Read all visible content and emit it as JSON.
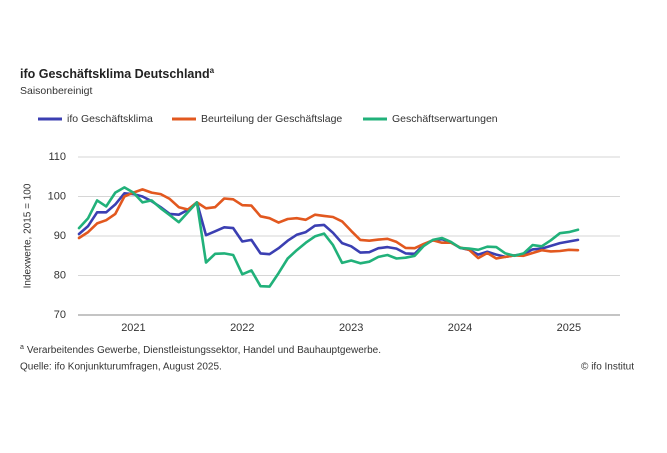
{
  "chart_data": {
    "type": "line",
    "title": "ifo Geschäftsklima Deutschland",
    "title_note": "a",
    "subtitle": "Saisonbereinigt",
    "ylabel": "Indexwerte, 2015 = 100",
    "categories": [
      null,
      null,
      null,
      null,
      null,
      null,
      "2021",
      null,
      null,
      null,
      null,
      null,
      null,
      null,
      null,
      null,
      null,
      null,
      "2022",
      null,
      null,
      null,
      null,
      null,
      null,
      null,
      null,
      null,
      null,
      null,
      "2023",
      null,
      null,
      null,
      null,
      null,
      null,
      null,
      null,
      null,
      null,
      null,
      "2024",
      null,
      null,
      null,
      null,
      null,
      null,
      null,
      null,
      null,
      null,
      null,
      "2025",
      null
    ],
    "series": [
      {
        "name": "ifo Geschäftsklima",
        "color": "#3b3fb2",
        "values": [
          90.5,
          92.5,
          96,
          96,
          98,
          100.8,
          100.6,
          100,
          98.8,
          97.3,
          95.6,
          95.4,
          96.6,
          98.5,
          90.2,
          91.2,
          92.2,
          92,
          88.6,
          89,
          85.6,
          85.4,
          86.9,
          88.8,
          90.3,
          91,
          92.6,
          92.8,
          90.8,
          88.2,
          87.4,
          85.8,
          85.9,
          86.9,
          87.2,
          86.8,
          85.6,
          85.5,
          87.8,
          88.9,
          89.2,
          88.4,
          87,
          86.5,
          85.3,
          86,
          85.3,
          84.7,
          85.1,
          85.4,
          86.6,
          86.8,
          87.5,
          88.2,
          88.6,
          89
        ]
      },
      {
        "name": "Beurteilung der Geschäftslage",
        "color": "#e2581f",
        "values": [
          89.5,
          91,
          93.2,
          94,
          95.6,
          100,
          101,
          101.8,
          101,
          100.6,
          99.4,
          97.3,
          96.7,
          98.5,
          97,
          97.3,
          99.5,
          99.3,
          97.8,
          97.7,
          95,
          94.5,
          93.4,
          94.3,
          94.5,
          94.1,
          95.4,
          95.1,
          94.8,
          93.7,
          91.3,
          89,
          88.8,
          89.1,
          89.3,
          88.5,
          87,
          86.9,
          88,
          88.9,
          88.3,
          88.3,
          87.1,
          86.5,
          84.4,
          85.7,
          84.3,
          84.7,
          85.1,
          85,
          85.7,
          86.4,
          86.1,
          86.2,
          86.5,
          86.4
        ]
      },
      {
        "name": "Geschäftserwartungen",
        "color": "#21b17a",
        "values": [
          92,
          94.5,
          99,
          97.5,
          101,
          102.3,
          101,
          98.5,
          99,
          97,
          95.3,
          93.5,
          96,
          98.5,
          83.3,
          85.5,
          85.6,
          85.2,
          80.3,
          81.3,
          77.3,
          77.2,
          80.6,
          84.3,
          86.4,
          88.3,
          89.9,
          90.6,
          87.7,
          83.2,
          83.8,
          83.1,
          83.5,
          84.7,
          85.2,
          84.3,
          84.5,
          85,
          87.5,
          89,
          89.5,
          88.5,
          87,
          86.8,
          86.5,
          87.3,
          87.2,
          85.6,
          85,
          85.6,
          87.7,
          87.4,
          88.9,
          90.7,
          91,
          91.6
        ]
      }
    ],
    "ylim": [
      70,
      110
    ],
    "yticks": [
      70,
      80,
      90,
      100,
      110
    ],
    "grid": true,
    "footnote": {
      "marker": "a",
      "text": "Verarbeitendes Gewerbe, Dienstleistungssektor, Handel und Bauhauptgewerbe."
    },
    "source": "Quelle: ifo Konjunkturumfragen, August 2025.",
    "credit": "© ifo Institut"
  }
}
